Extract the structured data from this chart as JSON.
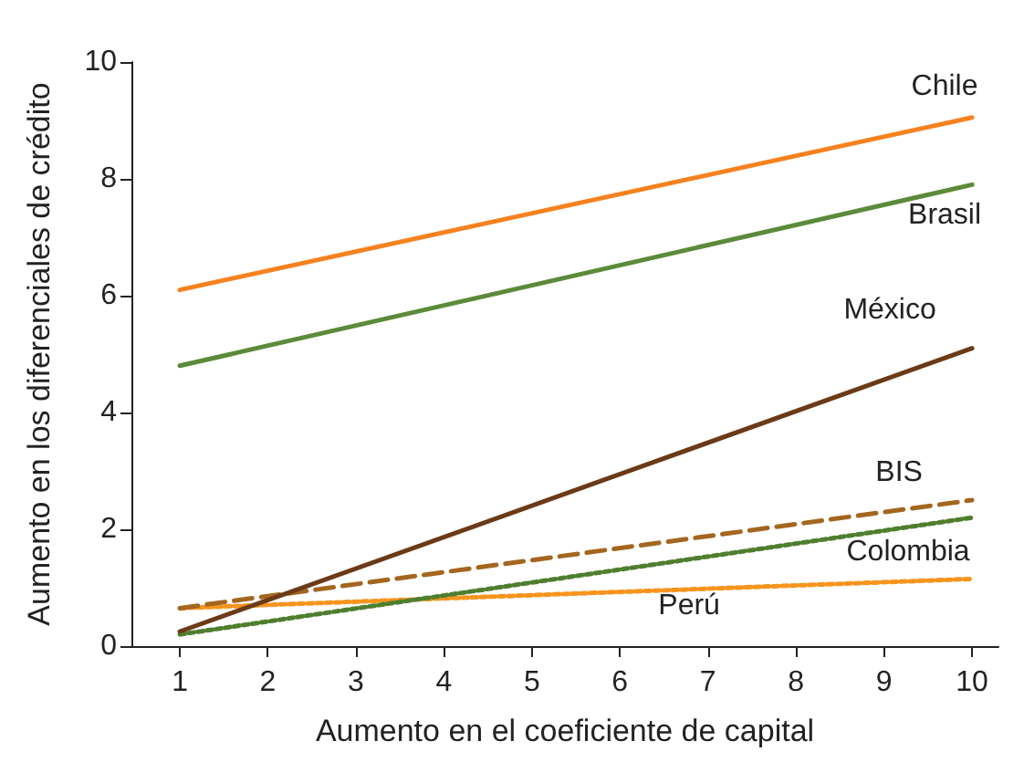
{
  "chart_data": {
    "type": "line",
    "xlabel": "Aumento en el coeficiente de capital",
    "ylabel": "Aumento en los diferenciales de crédito",
    "x": [
      1,
      10
    ],
    "series": [
      {
        "name": "Chile",
        "color": "#f5821f",
        "values": [
          6.1,
          9.05
        ],
        "line_style": "solid"
      },
      {
        "name": "Brasil",
        "color": "#5b8b3a",
        "values": [
          4.8,
          7.9
        ],
        "line_style": "solid"
      },
      {
        "name": "México",
        "color": "#6b3a17",
        "values": [
          0.25,
          5.1
        ],
        "line_style": "solid"
      },
      {
        "name": "BIS",
        "color": "#a4661f",
        "values": [
          0.65,
          2.5
        ],
        "line_style": "dashed"
      },
      {
        "name": "Colombia",
        "color": "#4f7f2e",
        "values": [
          0.2,
          2.2
        ],
        "line_style": "dotted"
      },
      {
        "name": "Perú",
        "color": "#f7941d",
        "values": [
          0.65,
          1.15
        ],
        "line_style": "dotted"
      }
    ],
    "xlim": [
      0.45,
      10.3
    ],
    "xticks": [
      1,
      2,
      3,
      4,
      5,
      6,
      7,
      8,
      9,
      10
    ],
    "ylim": [
      0,
      10
    ],
    "yticks": [
      0,
      2,
      4,
      6,
      8,
      10
    ],
    "grid": false,
    "legend": false,
    "marker": "none"
  }
}
